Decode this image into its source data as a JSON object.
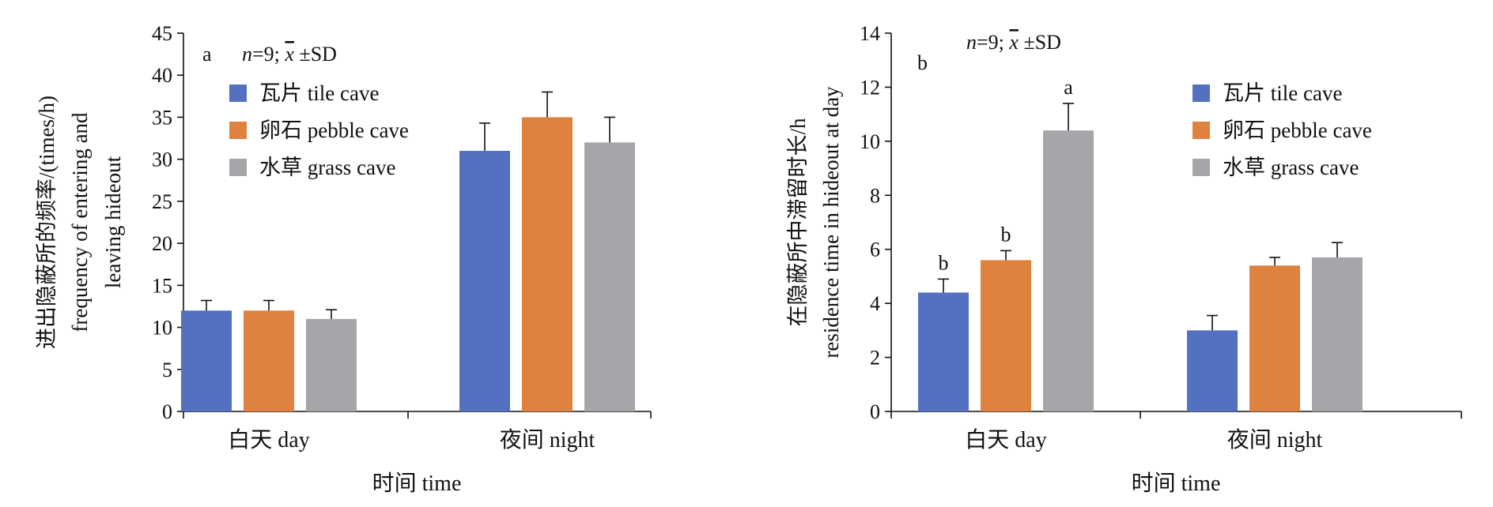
{
  "chart_data": [
    {
      "type": "bar",
      "panel_label": "a",
      "annotation": {
        "n": "n",
        "eq": "=9;  ",
        "xbar": "x",
        "sd": " ±SD"
      },
      "ylabel_lines": [
        "进出隐蔽所的频率/(times/h)",
        "frequency of entering and",
        "leaving hideout"
      ],
      "xlabel": "时间 time",
      "categories": [
        "白天 day",
        "夜间 night"
      ],
      "ylim": [
        0,
        45
      ],
      "yticks": [
        0,
        5,
        10,
        15,
        20,
        25,
        30,
        35,
        40,
        45
      ],
      "legend_position": "top-left",
      "series": [
        {
          "name": "瓦片 tile cave",
          "color": "#5470c0",
          "values": [
            12,
            31
          ],
          "errors": [
            1.2,
            3.3
          ],
          "letters": [
            "",
            ""
          ]
        },
        {
          "name": "卵石 pebble cave",
          "color": "#e0823f",
          "values": [
            12,
            35
          ],
          "errors": [
            1.2,
            3.0
          ],
          "letters": [
            "",
            ""
          ]
        },
        {
          "name": "水草 grass cave",
          "color": "#a6a6aa",
          "values": [
            11,
            32
          ],
          "errors": [
            1.1,
            3.0
          ],
          "letters": [
            "",
            ""
          ]
        }
      ]
    },
    {
      "type": "bar",
      "panel_label": "b",
      "annotation": {
        "n": "n",
        "eq": "=9;  ",
        "xbar": "x",
        "sd": " ±SD"
      },
      "ylabel_lines": [
        "在隐蔽所中滞留时长/h",
        "residence time in hideout at day"
      ],
      "xlabel": "时间 time",
      "categories": [
        "白天 day",
        "夜间 night"
      ],
      "ylim": [
        0,
        14
      ],
      "yticks": [
        0,
        2,
        4,
        6,
        8,
        10,
        12,
        14
      ],
      "legend_position": "top-right",
      "series": [
        {
          "name": "瓦片 tile cave",
          "color": "#5470c0",
          "values": [
            4.4,
            3.0
          ],
          "errors": [
            0.5,
            0.55
          ],
          "letters": [
            "b",
            ""
          ]
        },
        {
          "name": "卵石 pebble cave",
          "color": "#e0823f",
          "values": [
            5.6,
            5.4
          ],
          "errors": [
            0.35,
            0.3
          ],
          "letters": [
            "b",
            ""
          ]
        },
        {
          "name": "水草 grass cave",
          "color": "#a6a6aa",
          "values": [
            10.4,
            5.7
          ],
          "errors": [
            1.0,
            0.55
          ],
          "letters": [
            "a",
            ""
          ]
        }
      ]
    }
  ]
}
